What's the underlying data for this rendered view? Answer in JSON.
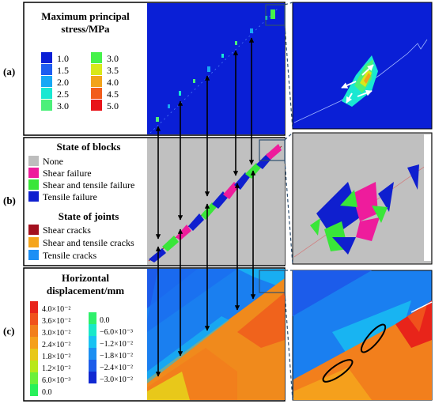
{
  "panels": {
    "a": {
      "label": "(a)",
      "title_line1": "Maximum principal",
      "title_line2": "stress/MPa",
      "legend_left": [
        {
          "label": "1.0",
          "color": "#0a1fd6"
        },
        {
          "label": "1.5",
          "color": "#1e5cf0"
        },
        {
          "label": "2.0",
          "color": "#18a8f5"
        },
        {
          "label": "2.5",
          "color": "#19e8d2"
        },
        {
          "label": "3.0",
          "color": "#4cf07a"
        }
      ],
      "legend_right": [
        {
          "label": "3.0",
          "color": "#46f24a"
        },
        {
          "label": "3.5",
          "color": "#d8e81a"
        },
        {
          "label": "4.0",
          "color": "#f2a31c"
        },
        {
          "label": "4.5",
          "color": "#f25c1c"
        },
        {
          "label": "5.0",
          "color": "#e8141a"
        }
      ]
    },
    "b": {
      "label": "(b)",
      "blocks_title": "State of blocks",
      "blocks": [
        {
          "label": "None",
          "color": "#bdbdbd"
        },
        {
          "label": "Shear failure",
          "color": "#ee1c9c"
        },
        {
          "label": "Shear and tensile failure",
          "color": "#39e639"
        },
        {
          "label": "Tensile failure",
          "color": "#0f1fcf"
        }
      ],
      "joints_title": "State of joints",
      "joints": [
        {
          "label": "Shear cracks",
          "color": "#a3101e"
        },
        {
          "label": "Shear and tensile cracks",
          "color": "#f5a51c"
        },
        {
          "label": "Tensile cracks",
          "color": "#1c8ff5"
        }
      ]
    },
    "c": {
      "label": "(c)",
      "title_line1": "Horizontal",
      "title_line2": "displacement/mm",
      "legend_left": [
        {
          "label": "4.0×10⁻²",
          "color": "#e8241a"
        },
        {
          "label": "3.6×10⁻²",
          "color": "#f0521c"
        },
        {
          "label": "3.0×10⁻²",
          "color": "#f27f1c"
        },
        {
          "label": "2.4×10⁻²",
          "color": "#f5a01c"
        },
        {
          "label": "1.8×10⁻²",
          "color": "#e8c81a"
        },
        {
          "label": "1.2×10⁻²",
          "color": "#b8e81a"
        },
        {
          "label": "6.0×10⁻³",
          "color": "#6cf03a"
        },
        {
          "label": "0.0",
          "color": "#28f05a"
        }
      ],
      "legend_right": [
        {
          "label": "0.0",
          "color": "#2ef06a"
        },
        {
          "label": "−6.0×10⁻³",
          "color": "#19e8c8"
        },
        {
          "label": "−1.2×10⁻²",
          "color": "#18c2f2"
        },
        {
          "label": "−1.8×10⁻²",
          "color": "#1a8ef2"
        },
        {
          "label": "−2.4×10⁻²",
          "color": "#1c5cea"
        },
        {
          "label": "−3.0×10⁻²",
          "color": "#1028d2"
        }
      ]
    }
  },
  "colors": {
    "stress_bg": "#0a1fd6",
    "blocks_bg": "#c0c0c0",
    "disp_blue": "#1a7ff0",
    "disp_orange": "#f08a1c",
    "frame": "#2f4f6f"
  }
}
